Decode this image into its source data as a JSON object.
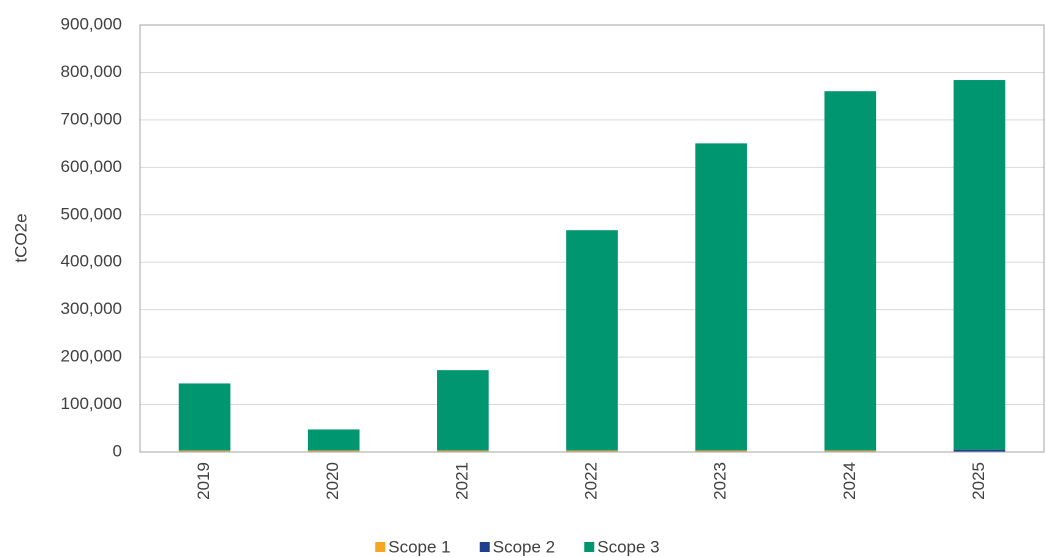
{
  "chart_data": {
    "type": "stacked_bar",
    "y_label": "tCO2e",
    "categories": [
      "2019",
      "2020",
      "2021",
      "2022",
      "2023",
      "2024",
      "2025"
    ],
    "series": [
      {
        "name": "Scope 1",
        "color": "#f5a623",
        "values": [
          3000,
          3000,
          3000,
          3000,
          3000,
          3000,
          1000
        ]
      },
      {
        "name": "Scope 2",
        "color": "#1f3f8f",
        "values": [
          500,
          500,
          500,
          500,
          500,
          500,
          4000
        ]
      },
      {
        "name": "Scope 3",
        "color": "#009670",
        "values": [
          141000,
          44000,
          169000,
          464000,
          647000,
          757000,
          779000
        ]
      }
    ],
    "ylim": [
      0,
      900000
    ],
    "yticks": [
      0,
      {
        "value": 100000,
        "label": "100,000"
      },
      {
        "value": 200000,
        "label": "200,000"
      },
      {
        "value": 300000,
        "label": "300,000"
      },
      {
        "value": 400000,
        "label": "400,000"
      },
      {
        "value": 500000,
        "label": "500,000"
      },
      {
        "value": 600000,
        "label": "600,000"
      },
      {
        "value": 700000,
        "label": "700,000"
      },
      {
        "value": 800000,
        "label": "800,000"
      },
      {
        "value": 900000,
        "label": "900,000"
      }
    ],
    "grid": true,
    "legend": "bottom"
  }
}
